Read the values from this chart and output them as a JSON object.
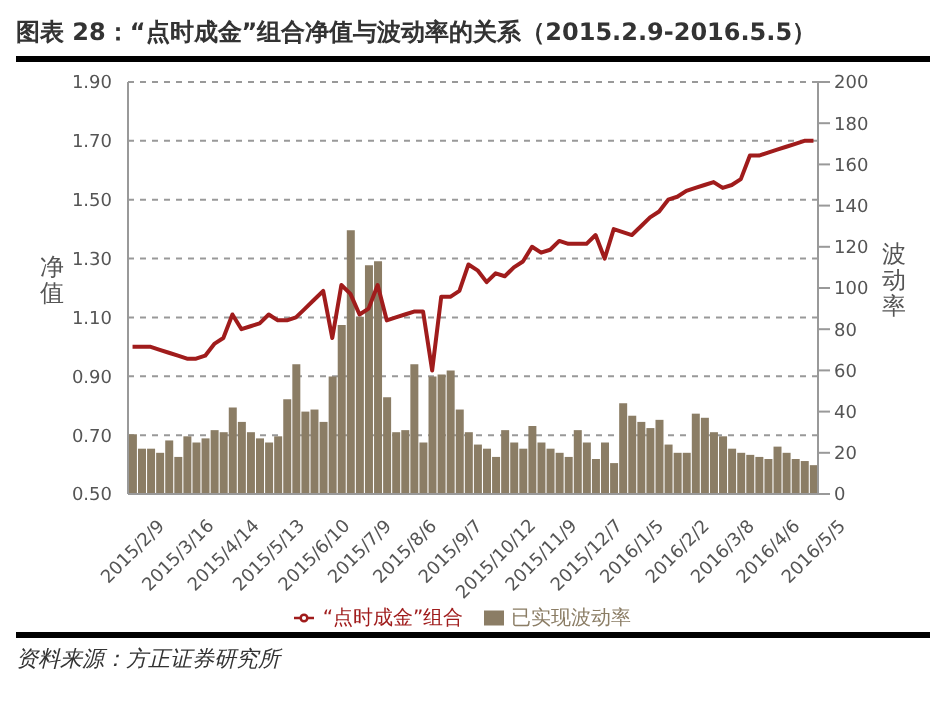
{
  "chart_data": {
    "type": "bar",
    "title": "图表 28：“点时成金”组合净值与波动率的关系（2015.2.9-2016.5.5）",
    "categories": [
      "2015/2/9",
      null,
      null,
      null,
      null,
      "2015/3/16",
      null,
      null,
      null,
      null,
      "2015/4/14",
      null,
      null,
      null,
      null,
      "2015/5/13",
      null,
      null,
      null,
      null,
      "2015/6/10",
      null,
      null,
      null,
      null,
      "2015/7/9",
      null,
      null,
      null,
      null,
      "2015/8/6",
      null,
      null,
      null,
      null,
      "2015/9/7",
      null,
      null,
      null,
      null,
      "2015/10/12",
      null,
      null,
      null,
      null,
      "2015/11/9",
      null,
      null,
      null,
      null,
      "2015/12/7",
      null,
      null,
      null,
      null,
      "2016/1/5",
      null,
      null,
      null,
      null,
      "2016/2/2",
      null,
      null,
      null,
      null,
      "2016/3/8",
      null,
      null,
      null,
      null,
      "2016/4/6",
      null,
      null,
      null,
      null,
      "2016/5/5"
    ],
    "series": [
      {
        "name": "已实现波动率",
        "axis": "y2",
        "color": "#8b7d65",
        "values": [
          29,
          22,
          22,
          20,
          26,
          18,
          28,
          25,
          27,
          31,
          30,
          42,
          35,
          30,
          27,
          25,
          28,
          46,
          63,
          40,
          41,
          35,
          57,
          82,
          128,
          86,
          111,
          113,
          47,
          30,
          31,
          63,
          25,
          57,
          58,
          60,
          41,
          30,
          24,
          22,
          18,
          31,
          25,
          22,
          33,
          25,
          22,
          20,
          18,
          31,
          25,
          17,
          25,
          15,
          44,
          38,
          35,
          32,
          36,
          24,
          20,
          20,
          39,
          37,
          30,
          28,
          22,
          20,
          19,
          18,
          17,
          23,
          20,
          17,
          16,
          14
        ]
      },
      {
        "name": "“点时成金”组合",
        "type": "line",
        "color": "#a01c1c",
        "values": [
          1.0,
          1.0,
          1.0,
          0.99,
          0.98,
          0.97,
          0.96,
          0.96,
          0.97,
          1.01,
          1.03,
          1.11,
          1.06,
          1.07,
          1.08,
          1.11,
          1.09,
          1.09,
          1.1,
          1.13,
          1.16,
          1.19,
          1.03,
          1.21,
          1.18,
          1.11,
          1.13,
          1.21,
          1.09,
          1.1,
          1.11,
          1.12,
          1.12,
          0.92,
          1.17,
          1.17,
          1.19,
          1.28,
          1.26,
          1.22,
          1.25,
          1.24,
          1.27,
          1.29,
          1.34,
          1.32,
          1.33,
          1.36,
          1.35,
          1.35,
          1.35,
          1.38,
          1.3,
          1.4,
          1.39,
          1.38,
          1.41,
          1.44,
          1.46,
          1.5,
          1.51,
          1.53,
          1.54,
          1.55,
          1.56,
          1.54,
          1.55,
          1.57,
          1.65,
          1.65,
          1.66,
          1.67,
          1.68,
          1.69,
          1.7,
          1.7
        ]
      }
    ],
    "ylabel": "净值",
    "y2label": "波动率",
    "ylim": [
      0.5,
      1.9
    ],
    "yticks": [
      {
        "value": 0.5,
        "label": "0.50"
      },
      {
        "value": 0.7,
        "label": "0.70"
      },
      {
        "value": 0.9,
        "label": "0.90"
      },
      {
        "value": 1.1,
        "label": "1.10"
      },
      {
        "value": 1.3,
        "label": "1.30"
      },
      {
        "value": 1.5,
        "label": "1.50"
      },
      {
        "value": 1.7,
        "label": "1.70"
      },
      {
        "value": 1.9,
        "label": "1.90"
      }
    ],
    "y2lim": [
      0,
      200
    ],
    "y2ticks": [
      0,
      20,
      40,
      60,
      80,
      100,
      120,
      140,
      160,
      180,
      200
    ],
    "grid": "y",
    "legend": "bottom",
    "marker": "none",
    "line_style": "solid",
    "annotations": [
      "资料来源：方正证券研究所"
    ]
  }
}
